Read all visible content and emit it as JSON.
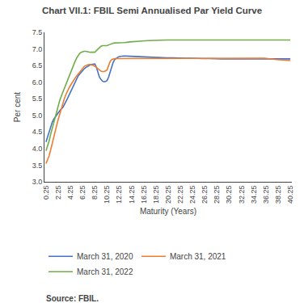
{
  "chart_data": {
    "type": "line",
    "title": "Chart VII.1: FBIL Semi Annualised Par Yield Curve",
    "xlabel": "Maturity (Years)",
    "ylabel": "Per cent",
    "annotations": [
      "Source: FBIL."
    ],
    "x": [
      0.25,
      0.5,
      0.75,
      1.0,
      1.25,
      1.5,
      1.75,
      2.0,
      2.25,
      2.5,
      2.75,
      3.0,
      3.25,
      3.5,
      3.75,
      4.0,
      4.25,
      4.5,
      4.75,
      5.0,
      5.25,
      5.5,
      5.75,
      6.0,
      6.25,
      6.5,
      6.75,
      7.0,
      7.25,
      7.5,
      7.75,
      8.0,
      8.25,
      8.5,
      8.75,
      9.0,
      9.25,
      9.5,
      9.75,
      10.0,
      10.25,
      10.5,
      10.75,
      11.0,
      11.25,
      11.5,
      11.75,
      12.0,
      12.25,
      12.5,
      13.0,
      14.0,
      15.0,
      16.0,
      17.0,
      18.0,
      19.0,
      20.0,
      21.0,
      22.0,
      23.0,
      24.0,
      25.0,
      26.0,
      27.0,
      28.0,
      29.0,
      30.0,
      32.0,
      34.0,
      36.0,
      38.0,
      40.0,
      40.25
    ],
    "series": [
      {
        "name": "March 31, 2020",
        "color": "#4472c4",
        "values": [
          4.2,
          4.35,
          4.5,
          4.65,
          4.78,
          4.88,
          4.95,
          5.02,
          5.08,
          5.14,
          5.19,
          5.24,
          5.32,
          5.4,
          5.5,
          5.6,
          5.7,
          5.82,
          5.92,
          6.02,
          6.1,
          6.18,
          6.24,
          6.3,
          6.36,
          6.4,
          6.44,
          6.47,
          6.5,
          6.52,
          6.53,
          6.54,
          6.55,
          6.45,
          6.3,
          6.15,
          6.08,
          6.03,
          6.01,
          6.02,
          6.05,
          6.15,
          6.3,
          6.48,
          6.6,
          6.68,
          6.72,
          6.75,
          6.77,
          6.78,
          6.79,
          6.78,
          6.77,
          6.76,
          6.75,
          6.74,
          6.74,
          6.73,
          6.73,
          6.72,
          6.72,
          6.72,
          6.71,
          6.71,
          6.71,
          6.7,
          6.7,
          6.7,
          6.7,
          6.7,
          6.7,
          6.7,
          6.7,
          6.7
        ]
      },
      {
        "name": "March 31, 2021",
        "color": "#ed7d31",
        "values": [
          3.55,
          3.65,
          3.78,
          3.95,
          4.12,
          4.32,
          4.52,
          4.7,
          4.88,
          5.05,
          5.2,
          5.35,
          5.5,
          5.62,
          5.73,
          5.82,
          5.9,
          5.98,
          6.05,
          6.12,
          6.18,
          6.24,
          6.3,
          6.36,
          6.42,
          6.47,
          6.5,
          6.52,
          6.53,
          6.53,
          6.52,
          6.5,
          6.48,
          6.44,
          6.4,
          6.36,
          6.33,
          6.32,
          6.32,
          6.34,
          6.37,
          6.5,
          6.62,
          6.68,
          6.7,
          6.71,
          6.71,
          6.71,
          6.72,
          6.72,
          6.72,
          6.72,
          6.72,
          6.72,
          6.72,
          6.72,
          6.72,
          6.72,
          6.72,
          6.72,
          6.72,
          6.72,
          6.72,
          6.72,
          6.72,
          6.72,
          6.72,
          6.72,
          6.72,
          6.72,
          6.72,
          6.68,
          6.65,
          6.65
        ]
      },
      {
        "name": "March 31, 2022",
        "color": "#70ad47",
        "values": [
          3.93,
          4.05,
          4.22,
          4.42,
          4.6,
          4.78,
          4.98,
          5.15,
          5.3,
          5.45,
          5.58,
          5.7,
          5.82,
          5.94,
          6.05,
          6.17,
          6.28,
          6.4,
          6.52,
          6.62,
          6.72,
          6.8,
          6.86,
          6.9,
          6.92,
          6.93,
          6.93,
          6.92,
          6.9,
          6.9,
          6.9,
          6.9,
          6.9,
          6.95,
          7.0,
          7.05,
          7.08,
          7.1,
          7.1,
          7.1,
          7.1,
          7.12,
          7.14,
          7.16,
          7.17,
          7.18,
          7.18,
          7.18,
          7.18,
          7.18,
          7.19,
          7.21,
          7.23,
          7.24,
          7.25,
          7.26,
          7.27,
          7.27,
          7.27,
          7.27,
          7.27,
          7.27,
          7.27,
          7.27,
          7.27,
          7.27,
          7.27,
          7.27,
          7.27,
          7.27,
          7.27,
          7.27,
          7.27,
          7.27
        ]
      }
    ],
    "xlim": [
      0.0,
      40.5
    ],
    "xticks": [
      0.25,
      2.25,
      4.25,
      6.25,
      8.25,
      10.25,
      12.25,
      14.25,
      16.25,
      18.25,
      20.25,
      22.25,
      24.25,
      26.25,
      28.25,
      30.25,
      32.25,
      34.25,
      36.25,
      38.25,
      40.25
    ],
    "ylim": [
      3.0,
      7.5
    ],
    "yticks": [
      {
        "value": 3.0,
        "label": "3.0"
      },
      3.5,
      {
        "value": 4.0,
        "label": "4.0"
      },
      4.5,
      {
        "value": 5.0,
        "label": "5.0"
      },
      5.5,
      {
        "value": 6.0,
        "label": "6.0"
      },
      6.5,
      {
        "value": 7.0,
        "label": "7.0"
      },
      7.5
    ],
    "grid": false,
    "legend": "bottom"
  }
}
